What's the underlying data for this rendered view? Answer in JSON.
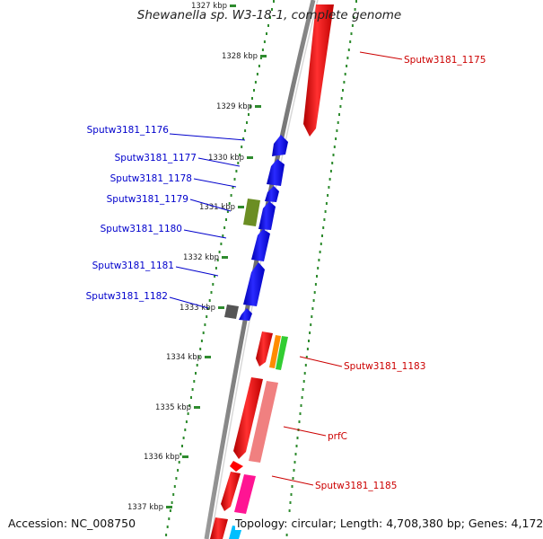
{
  "title": "Shewanella sp. W3-18-1, complete genome",
  "footer": {
    "accession": "Accession: NC_008750",
    "topology": "Topology: circular; Length: 4,708,380 bp; Genes: 4,172"
  },
  "ticks": [
    {
      "label": "1327 kbp"
    },
    {
      "label": "1328 kbp"
    },
    {
      "label": "1329 kbp"
    },
    {
      "label": "1330 kbp"
    },
    {
      "label": "1331 kbp"
    },
    {
      "label": "1332 kbp"
    },
    {
      "label": "1333 kbp"
    },
    {
      "label": "1334 kbp"
    },
    {
      "label": "1335 kbp"
    },
    {
      "label": "1336 kbp"
    },
    {
      "label": "1337 kbp"
    }
  ],
  "genes": [
    {
      "label": "Sputw3181_1175",
      "strand": "forward",
      "color": "#ff0000"
    },
    {
      "label": "Sputw3181_1176",
      "strand": "reverse",
      "color": "#0000ff"
    },
    {
      "label": "Sputw3181_1177",
      "strand": "reverse",
      "color": "#0000ff"
    },
    {
      "label": "Sputw3181_1178",
      "strand": "reverse",
      "color": "#0000ff"
    },
    {
      "label": "Sputw3181_1179",
      "strand": "reverse",
      "color": "#0000ff"
    },
    {
      "label": "Sputw3181_1180",
      "strand": "reverse",
      "color": "#0000ff"
    },
    {
      "label": "Sputw3181_1181",
      "strand": "reverse",
      "color": "#0000ff"
    },
    {
      "label": "Sputw3181_1182",
      "strand": "reverse",
      "color": "#0000ff"
    },
    {
      "label": "Sputw3181_1183",
      "strand": "forward",
      "color": "#ff0000"
    },
    {
      "label": "prfC",
      "strand": "forward",
      "color": "#ff0000"
    },
    {
      "label": "Sputw3181_1185",
      "strand": "forward",
      "color": "#ff0000"
    }
  ],
  "colors": {
    "forward_gene": "#ff0000",
    "reverse_gene": "#0000ff",
    "backbone": "#7a7a7a",
    "tick_marks": "#2e8b2e",
    "rna_green": "#6b8e23",
    "gray_feature": "#555555",
    "prfC_cog": "#f08080",
    "pink_feature": "#ff1493",
    "orange_feature": "#ff8c00",
    "lightgreen_feature": "#32cd32"
  }
}
